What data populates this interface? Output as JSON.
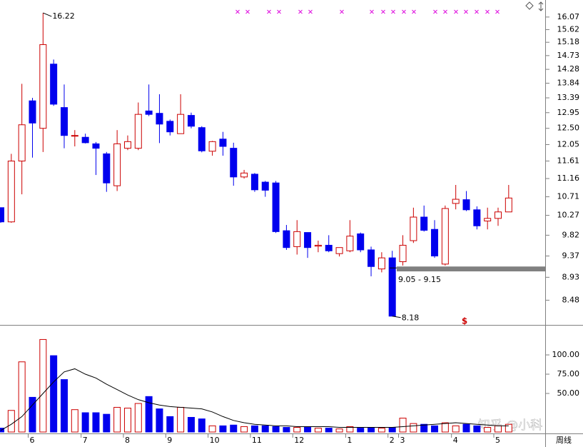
{
  "chart_data": [
    {
      "type": "candlestick",
      "log_scale": true,
      "up_color": "#cc0000",
      "down_color": "#0000ee",
      "categories": [
        null,
        null,
        null,
        "6",
        null,
        null,
        null,
        null,
        "7",
        null,
        null,
        null,
        "8",
        null,
        null,
        null,
        "9",
        null,
        null,
        null,
        "10",
        null,
        null,
        null,
        "11",
        null,
        null,
        null,
        "12",
        null,
        null,
        null,
        null,
        "1",
        null,
        null,
        null,
        "2",
        "3",
        null,
        null,
        null,
        null,
        "4",
        null,
        null,
        null,
        "5",
        null
      ],
      "open": [
        10.45,
        10.12,
        11.61,
        13.3,
        12.5,
        14.45,
        13.1,
        12.28,
        12.25,
        12.07,
        11.8,
        10.98,
        11.95,
        11.95,
        13.0,
        12.93,
        12.7,
        12.35,
        12.87,
        12.52,
        11.87,
        12.2,
        11.95,
        11.2,
        11.27,
        11.07,
        11.05,
        9.92,
        9.57,
        9.88,
        9.58,
        9.6,
        9.42,
        9.48,
        9.85,
        9.5,
        9.1,
        9.33,
        9.25,
        9.7,
        10.23,
        9.95,
        9.2,
        10.55,
        10.64,
        10.4,
        10.14,
        10.2,
        10.35
      ],
      "high": [
        10.45,
        11.8,
        13.82,
        13.39,
        16.22,
        14.6,
        13.8,
        12.45,
        12.35,
        12.12,
        11.85,
        12.45,
        12.3,
        13.25,
        13.8,
        13.5,
        12.75,
        13.5,
        12.95,
        12.56,
        12.15,
        12.4,
        12.1,
        11.38,
        11.3,
        11.1,
        11.1,
        10.05,
        10.16,
        9.88,
        9.7,
        9.82,
        9.52,
        10.16,
        9.88,
        9.57,
        9.45,
        9.48,
        9.82,
        10.45,
        10.5,
        10.16,
        10.5,
        11.0,
        10.85,
        10.48,
        10.45,
        10.45,
        11.0
      ],
      "low": [
        10.1,
        10.1,
        10.77,
        11.7,
        11.85,
        13.15,
        11.95,
        12.0,
        12.08,
        11.25,
        10.83,
        10.85,
        11.9,
        11.9,
        12.85,
        12.09,
        12.3,
        12.35,
        12.5,
        11.84,
        11.75,
        11.75,
        10.98,
        11.16,
        10.83,
        10.71,
        9.87,
        9.5,
        9.4,
        9.33,
        9.45,
        9.45,
        9.36,
        9.45,
        9.45,
        8.95,
        9.03,
        8.18,
        9.17,
        9.65,
        9.9,
        9.33,
        9.17,
        10.41,
        10.37,
        9.95,
        9.95,
        10.03,
        10.35
      ],
      "close": [
        10.12,
        11.61,
        12.6,
        12.65,
        15.1,
        13.2,
        12.3,
        12.3,
        12.1,
        11.95,
        11.05,
        12.07,
        12.13,
        12.9,
        12.9,
        12.62,
        12.4,
        12.9,
        12.56,
        11.88,
        12.13,
        12.0,
        11.2,
        11.3,
        10.88,
        10.87,
        9.9,
        9.55,
        9.9,
        9.55,
        9.6,
        9.48,
        9.55,
        9.8,
        9.5,
        9.15,
        9.33,
        8.18,
        9.6,
        10.23,
        9.93,
        9.37,
        10.43,
        10.65,
        10.4,
        10.03,
        10.2,
        10.35,
        10.68
      ],
      "ylim": [
        8.02,
        16.7
      ],
      "yticks": [
        16.07,
        15.62,
        15.18,
        14.73,
        14.28,
        13.84,
        13.39,
        12.95,
        {
          "value": 12.5,
          "label": "12.50"
        },
        12.05,
        11.61,
        11.16,
        10.71,
        10.27,
        9.82,
        9.37,
        8.93,
        8.48
      ],
      "range_band": {
        "text": "9.05 - 9.15",
        "low": 9.05,
        "high": 9.15
      },
      "signal_text": "$",
      "period_label": "周线",
      "watermark": "知乎 @小科"
    },
    {
      "type": "bar",
      "series": [
        {
          "values": [
            5,
            28,
            91,
            45,
            120,
            99,
            68,
            29,
            25,
            25,
            23,
            32,
            31,
            37,
            46,
            30,
            20,
            32,
            19,
            17,
            8,
            8,
            9,
            7,
            8,
            8,
            7,
            6,
            6,
            6,
            5,
            5,
            4,
            7,
            5,
            6,
            5,
            6,
            18,
            11,
            10,
            8,
            12,
            8,
            10,
            8,
            6,
            8,
            10
          ]
        },
        {
          "type": "line",
          "color": "#000000",
          "values": [
            2,
            10,
            20,
            35,
            50,
            65,
            78,
            82,
            75,
            70,
            62,
            55,
            48,
            42,
            38,
            35,
            33,
            32,
            31,
            30,
            26,
            20,
            15,
            12,
            10,
            9,
            8,
            8,
            7,
            7,
            7,
            7,
            6,
            6,
            6,
            6,
            6,
            6,
            7,
            8,
            9,
            10,
            11,
            12,
            11,
            10,
            9,
            8,
            8
          ]
        }
      ],
      "ylim": [
        0,
        138
      ],
      "yticks": [
        {
          "value": 50,
          "label": "50.00"
        },
        {
          "value": 75,
          "label": "75.00"
        },
        {
          "value": 100,
          "label": "100.00"
        }
      ]
    }
  ]
}
